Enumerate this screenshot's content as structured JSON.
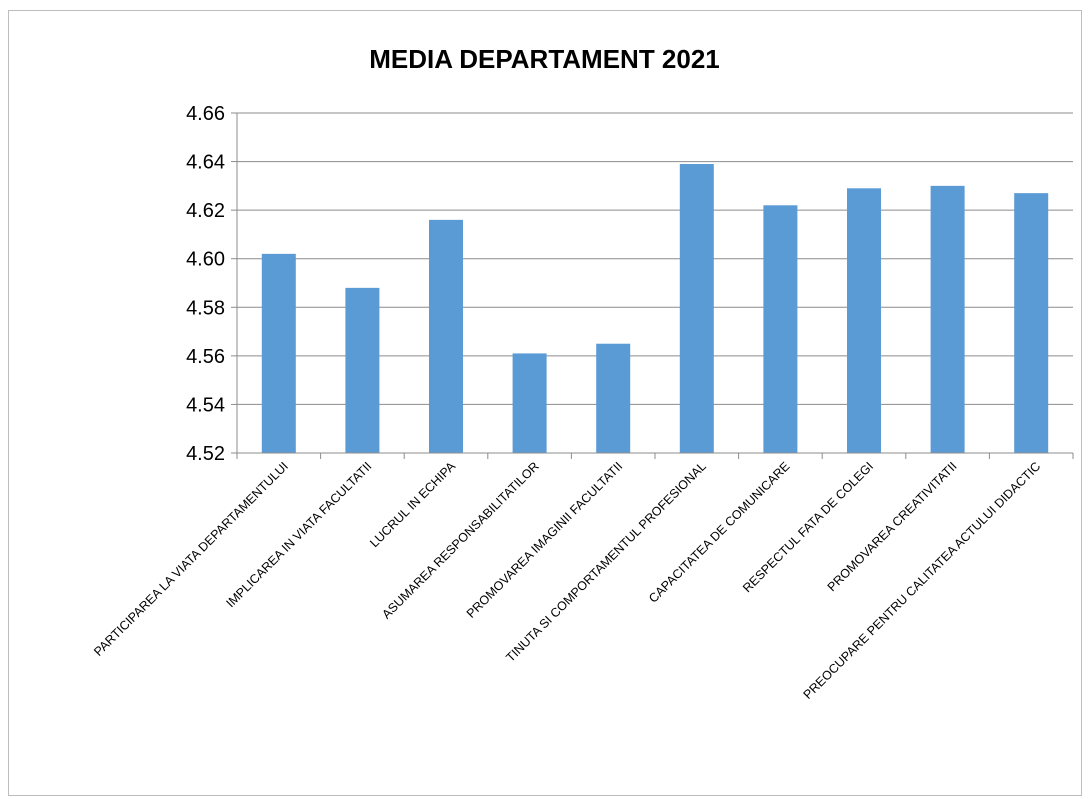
{
  "chart_data": {
    "type": "bar",
    "title": "MEDIA DEPARTAMENT 2021",
    "xlabel": "",
    "ylabel": "",
    "ylim": [
      4.52,
      4.66
    ],
    "yticks": [
      "4.52",
      "4.54",
      "4.56",
      "4.58",
      "4.60",
      "4.62",
      "4.64",
      "4.66"
    ],
    "grid": true,
    "bar_color": "#5b9bd5",
    "categories": [
      "PARTICIPAREA LA VIATA DEPARTAMENTULUI",
      "IMPLICAREA IN VIATA FACULTATII",
      "LUCRUL IN ECHIPA",
      "ASUMAREA RESPONSABILITATILOR",
      "PROMOVAREA IMAGINII FACULTATII",
      "TINUTA SI COMPORTAMENTUL PROFESIONAL",
      "CAPACITATEA DE COMUNICARE",
      "RESPECTUL FATA DE COLEGI",
      "PROMOVAREA CREATIVITATII",
      "PREOCUPARE PENTRU CALITATEA ACTULUI DIDACTIC"
    ],
    "values": [
      4.602,
      4.588,
      4.616,
      4.561,
      4.565,
      4.639,
      4.622,
      4.629,
      4.63,
      4.627
    ]
  }
}
